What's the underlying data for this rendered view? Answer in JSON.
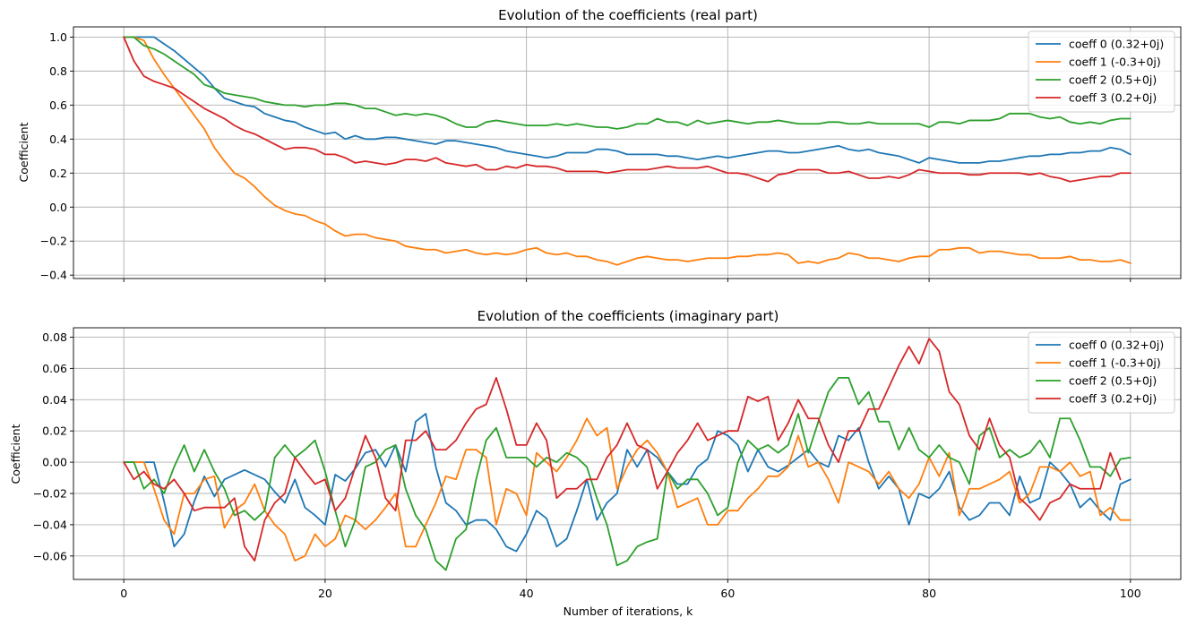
{
  "chart_data": [
    {
      "type": "line",
      "title": "Evolution of the coefficients (real part)",
      "xlabel": "",
      "ylabel": "Coefficient",
      "xlim": [
        -5,
        105
      ],
      "ylim": [
        -0.42,
        1.06
      ],
      "xticks": [
        0,
        20,
        40,
        60,
        80,
        100
      ],
      "xtick_labels": [
        "",
        "",
        "",
        "",
        "",
        ""
      ],
      "yticks": [
        -0.4,
        -0.2,
        0.0,
        0.2,
        0.4,
        0.6,
        0.8,
        1.0
      ],
      "ytick_labels": [
        "−0.4",
        "−0.2",
        "0.0",
        "0.2",
        "0.4",
        "0.6",
        "0.8",
        "1.0"
      ],
      "grid": true,
      "legend": "top-right",
      "series": [
        {
          "name": "coeff 0 (0.32+0j)",
          "color": "#1f77b4",
          "values": [
            1.0,
            1.0,
            1.0,
            1.0,
            0.96,
            0.92,
            0.87,
            0.82,
            0.77,
            0.7,
            0.64,
            0.62,
            0.6,
            0.59,
            0.55,
            0.53,
            0.51,
            0.5,
            0.47,
            0.45,
            0.43,
            0.44,
            0.4,
            0.42,
            0.4,
            0.4,
            0.41,
            0.41,
            0.4,
            0.39,
            0.38,
            0.37,
            0.39,
            0.39,
            0.38,
            0.37,
            0.36,
            0.35,
            0.33,
            0.32,
            0.31,
            0.3,
            0.29,
            0.3,
            0.32,
            0.32,
            0.32,
            0.34,
            0.34,
            0.33,
            0.31,
            0.31,
            0.31,
            0.31,
            0.3,
            0.3,
            0.29,
            0.28,
            0.29,
            0.3,
            0.29,
            0.3,
            0.31,
            0.32,
            0.33,
            0.33,
            0.32,
            0.32,
            0.33,
            0.34,
            0.35,
            0.36,
            0.34,
            0.33,
            0.34,
            0.32,
            0.31,
            0.3,
            0.28,
            0.26,
            0.29,
            0.28,
            0.27,
            0.26,
            0.26,
            0.26,
            0.27,
            0.27,
            0.28,
            0.29,
            0.3,
            0.3,
            0.31,
            0.31,
            0.32,
            0.32,
            0.33,
            0.33,
            0.35,
            0.34,
            0.31
          ]
        },
        {
          "name": "coeff 1 (-0.3+0j)",
          "color": "#ff7f0e",
          "values": [
            1.0,
            1.0,
            0.98,
            0.87,
            0.78,
            0.7,
            0.62,
            0.54,
            0.46,
            0.35,
            0.27,
            0.2,
            0.17,
            0.12,
            0.06,
            0.01,
            -0.02,
            -0.04,
            -0.05,
            -0.08,
            -0.1,
            -0.14,
            -0.17,
            -0.16,
            -0.16,
            -0.18,
            -0.19,
            -0.2,
            -0.23,
            -0.24,
            -0.25,
            -0.25,
            -0.27,
            -0.26,
            -0.25,
            -0.27,
            -0.28,
            -0.27,
            -0.28,
            -0.27,
            -0.25,
            -0.24,
            -0.27,
            -0.28,
            -0.27,
            -0.29,
            -0.29,
            -0.31,
            -0.32,
            -0.34,
            -0.32,
            -0.3,
            -0.29,
            -0.3,
            -0.31,
            -0.31,
            -0.32,
            -0.31,
            -0.3,
            -0.3,
            -0.3,
            -0.29,
            -0.29,
            -0.28,
            -0.28,
            -0.27,
            -0.28,
            -0.33,
            -0.32,
            -0.33,
            -0.31,
            -0.3,
            -0.27,
            -0.28,
            -0.3,
            -0.3,
            -0.31,
            -0.32,
            -0.3,
            -0.29,
            -0.29,
            -0.25,
            -0.25,
            -0.24,
            -0.24,
            -0.27,
            -0.26,
            -0.26,
            -0.27,
            -0.28,
            -0.28,
            -0.3,
            -0.3,
            -0.3,
            -0.29,
            -0.31,
            -0.31,
            -0.32,
            -0.32,
            -0.31,
            -0.33
          ]
        },
        {
          "name": "coeff 2 (0.5+0j)",
          "color": "#2ca02c",
          "values": [
            1.0,
            1.0,
            0.95,
            0.93,
            0.9,
            0.86,
            0.82,
            0.78,
            0.72,
            0.7,
            0.67,
            0.66,
            0.65,
            0.64,
            0.62,
            0.61,
            0.6,
            0.6,
            0.59,
            0.6,
            0.6,
            0.61,
            0.61,
            0.6,
            0.58,
            0.58,
            0.56,
            0.54,
            0.55,
            0.54,
            0.55,
            0.54,
            0.52,
            0.49,
            0.47,
            0.47,
            0.5,
            0.51,
            0.5,
            0.49,
            0.48,
            0.48,
            0.48,
            0.49,
            0.48,
            0.49,
            0.48,
            0.47,
            0.47,
            0.46,
            0.47,
            0.49,
            0.49,
            0.52,
            0.5,
            0.5,
            0.48,
            0.51,
            0.49,
            0.5,
            0.51,
            0.5,
            0.49,
            0.5,
            0.5,
            0.51,
            0.5,
            0.49,
            0.49,
            0.49,
            0.5,
            0.5,
            0.49,
            0.49,
            0.5,
            0.49,
            0.49,
            0.49,
            0.49,
            0.49,
            0.47,
            0.5,
            0.5,
            0.49,
            0.51,
            0.51,
            0.51,
            0.52,
            0.55,
            0.55,
            0.55,
            0.53,
            0.52,
            0.53,
            0.5,
            0.49,
            0.5,
            0.49,
            0.51,
            0.52,
            0.52
          ]
        },
        {
          "name": "coeff 3 (0.2+0j)",
          "color": "#d62728",
          "values": [
            1.0,
            0.86,
            0.77,
            0.74,
            0.72,
            0.7,
            0.66,
            0.62,
            0.58,
            0.55,
            0.52,
            0.48,
            0.45,
            0.43,
            0.4,
            0.37,
            0.34,
            0.35,
            0.35,
            0.34,
            0.31,
            0.31,
            0.29,
            0.26,
            0.27,
            0.26,
            0.25,
            0.26,
            0.28,
            0.28,
            0.27,
            0.29,
            0.26,
            0.25,
            0.24,
            0.25,
            0.22,
            0.22,
            0.24,
            0.23,
            0.25,
            0.24,
            0.24,
            0.23,
            0.21,
            0.21,
            0.21,
            0.21,
            0.2,
            0.21,
            0.22,
            0.22,
            0.22,
            0.23,
            0.24,
            0.23,
            0.23,
            0.23,
            0.24,
            0.22,
            0.2,
            0.2,
            0.19,
            0.17,
            0.15,
            0.19,
            0.2,
            0.22,
            0.22,
            0.22,
            0.2,
            0.2,
            0.21,
            0.19,
            0.17,
            0.17,
            0.18,
            0.17,
            0.19,
            0.22,
            0.21,
            0.2,
            0.2,
            0.2,
            0.19,
            0.19,
            0.2,
            0.2,
            0.2,
            0.2,
            0.19,
            0.2,
            0.18,
            0.17,
            0.15,
            0.16,
            0.17,
            0.18,
            0.18,
            0.2,
            0.2
          ]
        }
      ]
    },
    {
      "type": "line",
      "title": "Evolution of the coefficients (imaginary part)",
      "xlabel": "Number of iterations, k",
      "ylabel": "Coefficient",
      "xlim": [
        -5,
        105
      ],
      "ylim": [
        -0.075,
        0.086
      ],
      "xticks": [
        0,
        20,
        40,
        60,
        80,
        100
      ],
      "xtick_labels": [
        "0",
        "20",
        "40",
        "60",
        "80",
        "100"
      ],
      "yticks": [
        -0.06,
        -0.04,
        -0.02,
        0.0,
        0.02,
        0.04,
        0.06,
        0.08
      ],
      "ytick_labels": [
        "−0.06",
        "−0.04",
        "−0.02",
        "0.00",
        "0.02",
        "0.04",
        "0.06",
        "0.08"
      ],
      "grid": true,
      "legend": "top-right",
      "series": [
        {
          "name": "coeff 0 (0.32+0j)",
          "color": "#1f77b4",
          "values": [
            0,
            0,
            0,
            0,
            -0.025,
            -0.054,
            -0.046,
            -0.025,
            -0.009,
            -0.022,
            -0.011,
            -0.008,
            -0.005,
            -0.008,
            -0.011,
            -0.019,
            -0.026,
            -0.011,
            -0.029,
            -0.034,
            -0.04,
            -0.008,
            -0.012,
            -0.004,
            0.006,
            0.008,
            -0.003,
            0.011,
            -0.006,
            0.026,
            0.031,
            -0.003,
            -0.026,
            -0.031,
            -0.04,
            -0.037,
            -0.037,
            -0.043,
            -0.054,
            -0.057,
            -0.046,
            -0.031,
            -0.036,
            -0.054,
            -0.049,
            -0.031,
            -0.011,
            -0.037,
            -0.026,
            -0.02,
            0.008,
            -0.003,
            0.008,
            0.003,
            -0.006,
            -0.014,
            -0.014,
            -0.003,
            0.002,
            0.02,
            0.017,
            0.011,
            -0.006,
            0.008,
            -0.003,
            -0.006,
            -0.002,
            0.003,
            0.008,
            0.0,
            -0.003,
            0.017,
            0.014,
            0.022,
            0.0,
            -0.017,
            -0.009,
            -0.017,
            -0.04,
            -0.02,
            -0.023,
            -0.017,
            -0.006,
            -0.029,
            -0.037,
            -0.034,
            -0.026,
            -0.026,
            -0.034,
            -0.009,
            -0.026,
            -0.023,
            0.0,
            -0.006,
            -0.014,
            -0.029,
            -0.023,
            -0.031,
            -0.037,
            -0.014,
            -0.011
          ]
        },
        {
          "name": "coeff 1 (-0.3+0j)",
          "color": "#ff7f0e",
          "values": [
            0,
            0,
            0,
            -0.017,
            -0.037,
            -0.046,
            -0.02,
            -0.02,
            -0.011,
            -0.009,
            -0.042,
            -0.031,
            -0.026,
            -0.014,
            -0.031,
            -0.04,
            -0.046,
            -0.063,
            -0.06,
            -0.046,
            -0.054,
            -0.049,
            -0.034,
            -0.037,
            -0.043,
            -0.037,
            -0.029,
            -0.02,
            -0.054,
            -0.054,
            -0.04,
            -0.026,
            -0.009,
            -0.011,
            0.008,
            0.008,
            0.003,
            -0.04,
            -0.017,
            -0.02,
            -0.034,
            0.006,
            0.0,
            -0.006,
            0.003,
            0.014,
            0.028,
            0.017,
            0.022,
            -0.017,
            -0.003,
            0.008,
            0.014,
            0.006,
            -0.006,
            -0.029,
            -0.026,
            -0.023,
            -0.04,
            -0.04,
            -0.031,
            -0.031,
            -0.023,
            -0.017,
            -0.009,
            -0.009,
            -0.003,
            0.017,
            -0.003,
            0.0,
            -0.011,
            -0.026,
            0.0,
            -0.003,
            -0.006,
            -0.014,
            -0.006,
            -0.017,
            -0.023,
            -0.014,
            0.003,
            -0.009,
            0.006,
            -0.034,
            -0.017,
            -0.017,
            -0.014,
            -0.011,
            -0.006,
            -0.026,
            -0.02,
            -0.003,
            -0.003,
            -0.006,
            0.0,
            -0.009,
            -0.006,
            -0.034,
            -0.029,
            -0.037,
            -0.037
          ]
        },
        {
          "name": "coeff 2 (0.5+0j)",
          "color": "#2ca02c",
          "values": [
            0,
            0,
            -0.017,
            -0.011,
            -0.02,
            -0.003,
            0.011,
            -0.006,
            0.008,
            -0.006,
            -0.017,
            -0.034,
            -0.031,
            -0.037,
            -0.031,
            0.003,
            0.011,
            0.003,
            0.008,
            0.014,
            -0.006,
            -0.031,
            -0.054,
            -0.037,
            -0.003,
            0.0,
            0.008,
            0.011,
            -0.017,
            -0.034,
            -0.043,
            -0.063,
            -0.069,
            -0.049,
            -0.043,
            -0.011,
            0.014,
            0.022,
            0.003,
            0.003,
            0.003,
            -0.003,
            0.003,
            0.0,
            0.006,
            0.003,
            -0.003,
            -0.023,
            -0.04,
            -0.066,
            -0.063,
            -0.054,
            -0.051,
            -0.049,
            -0.006,
            -0.017,
            -0.011,
            -0.011,
            -0.02,
            -0.034,
            -0.029,
            0.0,
            0.014,
            0.008,
            0.011,
            0.006,
            0.011,
            0.031,
            0.006,
            0.026,
            0.045,
            0.054,
            0.054,
            0.037,
            0.045,
            0.026,
            0.026,
            0.008,
            0.022,
            0.008,
            0.003,
            0.011,
            0.003,
            0.0,
            -0.014,
            0.017,
            0.022,
            0.003,
            0.008,
            0.003,
            0.006,
            0.014,
            0.003,
            0.028,
            0.028,
            0.014,
            -0.003,
            -0.003,
            -0.009,
            0.002,
            0.003
          ]
        },
        {
          "name": "coeff 3 (0.2+0j)",
          "color": "#d62728",
          "values": [
            0,
            -0.011,
            -0.006,
            -0.014,
            -0.017,
            -0.011,
            -0.02,
            -0.031,
            -0.029,
            -0.029,
            -0.029,
            -0.023,
            -0.054,
            -0.063,
            -0.037,
            -0.026,
            -0.02,
            0.003,
            -0.006,
            -0.014,
            -0.011,
            -0.031,
            -0.023,
            -0.003,
            0.017,
            0.003,
            -0.023,
            -0.031,
            0.014,
            0.014,
            0.02,
            0.008,
            0.008,
            0.014,
            0.025,
            0.034,
            0.037,
            0.054,
            0.034,
            0.011,
            0.011,
            0.025,
            0.014,
            -0.023,
            -0.017,
            -0.017,
            -0.011,
            -0.011,
            0.003,
            0.011,
            0.025,
            0.011,
            0.008,
            -0.017,
            -0.006,
            0.006,
            0.014,
            0.025,
            0.014,
            0.017,
            0.02,
            0.02,
            0.042,
            0.039,
            0.042,
            0.014,
            0.025,
            0.04,
            0.028,
            0.028,
            0.011,
            0.0,
            0.02,
            0.02,
            0.034,
            0.034,
            0.048,
            0.062,
            0.074,
            0.063,
            0.079,
            0.071,
            0.045,
            0.037,
            0.017,
            0.008,
            0.028,
            0.011,
            0.003,
            -0.023,
            -0.029,
            -0.037,
            -0.026,
            -0.023,
            -0.014,
            -0.017,
            -0.017,
            -0.017,
            0.006,
            -0.011
          ]
        }
      ]
    }
  ]
}
